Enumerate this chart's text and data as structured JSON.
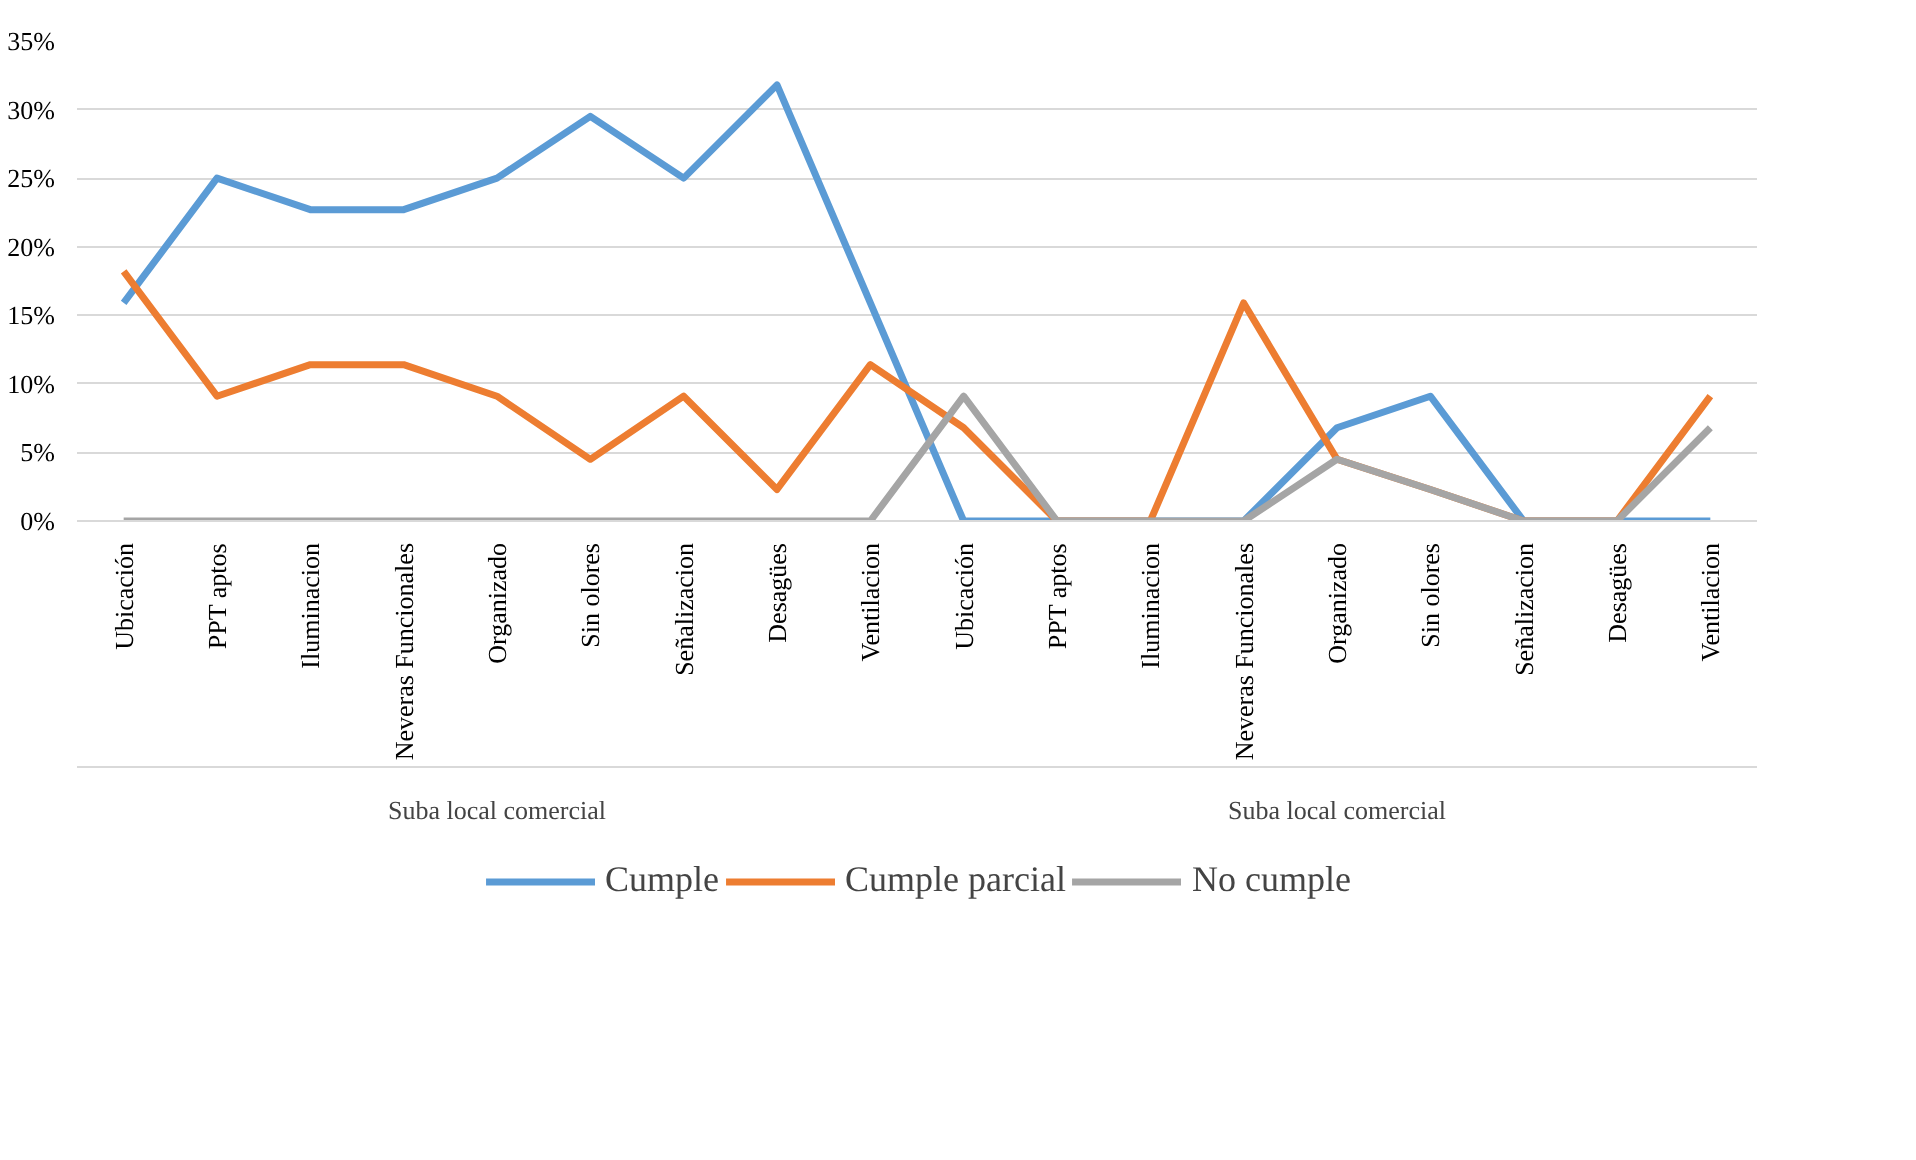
{
  "chart_data": {
    "type": "line",
    "categories": [
      "Ubicación",
      "PPT aptos",
      "Iluminacion",
      "Neveras Funcionales",
      "Organizado",
      "Sin olores",
      "Señalizacion",
      "Desagües",
      "Ventilacion",
      "Ubicación",
      "PPT aptos",
      "Iluminacion",
      "Neveras Funcionales",
      "Organizado",
      "Sin olores",
      "Señalizacion",
      "Desagües",
      "Ventilacion"
    ],
    "series": [
      {
        "name": "Cumple",
        "color": "#5b9bd5",
        "values": [
          15.9,
          25,
          22.7,
          22.7,
          25,
          29.5,
          25,
          31.8,
          15.9,
          0,
          0,
          0,
          0,
          6.8,
          9.1,
          0,
          0,
          0
        ]
      },
      {
        "name": "Cumple parcial",
        "color": "#ed7d31",
        "values": [
          18.2,
          9.1,
          11.4,
          11.4,
          9.1,
          4.5,
          9.1,
          2.3,
          11.4,
          6.8,
          0,
          0,
          15.9,
          4.5,
          2.3,
          0,
          0,
          9.1
        ]
      },
      {
        "name": "No cumple",
        "color": "#a5a5a5",
        "values": [
          0,
          0,
          0,
          0,
          0,
          0,
          0,
          0,
          0,
          9.1,
          0,
          0,
          0,
          4.5,
          2.3,
          0,
          0,
          6.8
        ]
      }
    ],
    "annotations": [
      "Suba local comercial",
      "Suba local comercial"
    ],
    "ylim": [
      0,
      35
    ],
    "yticks": [
      {
        "value": 0,
        "label": "0%"
      },
      {
        "value": 5,
        "label": "5%"
      },
      {
        "value": 10,
        "label": "10%"
      },
      {
        "value": 15,
        "label": "15%"
      },
      {
        "value": 20,
        "label": "20%"
      },
      {
        "value": 25,
        "label": "25%"
      },
      {
        "value": 30,
        "label": "30%"
      },
      {
        "value": 35,
        "label": "35%"
      }
    ],
    "grid": "y",
    "legend": "bottom",
    "marker": "none",
    "line_style": "solid"
  }
}
